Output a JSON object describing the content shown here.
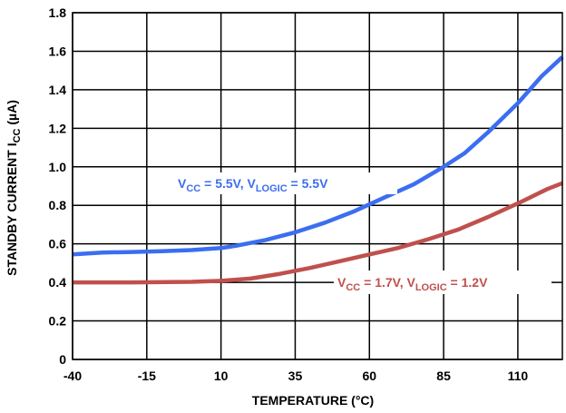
{
  "chart_data": {
    "type": "line",
    "xlabel": "TEMPERATURE (°C)",
    "ylabel": {
      "main": "STANDBY CURRENT I",
      "sub": "CC",
      "unit": " (µA)"
    },
    "xlim": [
      -40,
      125
    ],
    "ylim": [
      0,
      1.8
    ],
    "x_ticks": [
      "-40",
      "-15",
      "10",
      "35",
      "60",
      "85",
      "110"
    ],
    "x_tick_values": [
      -40,
      -15,
      10,
      35,
      60,
      85,
      110
    ],
    "y_ticks": [
      "0",
      "0.2",
      "0.4",
      "0.6",
      "0.8",
      "1.0",
      "1.2",
      "1.4",
      "1.6",
      "1.8"
    ],
    "y_tick_values": [
      0,
      0.2,
      0.4,
      0.6,
      0.8,
      1.0,
      1.2,
      1.4,
      1.6,
      1.8
    ],
    "grid": true,
    "series": [
      {
        "color": "#3b6ef0",
        "label_parts": [
          "V",
          "CC",
          " = 5.5V, V",
          "LOGIC",
          " = 5.5V"
        ],
        "x": [
          -40,
          -30,
          -20,
          -10,
          0,
          10,
          15,
          25,
          35,
          45,
          55,
          65,
          75,
          85,
          92,
          100,
          110,
          118,
          125
        ],
        "values": [
          0.545,
          0.555,
          0.558,
          0.562,
          0.568,
          0.578,
          0.59,
          0.62,
          0.66,
          0.71,
          0.77,
          0.84,
          0.91,
          1.0,
          1.07,
          1.18,
          1.33,
          1.47,
          1.57
        ]
      },
      {
        "color": "#c0504d",
        "label_parts": [
          "V",
          "CC",
          " = 1.7V, V",
          "LOGIC",
          " = 1.2V"
        ],
        "x": [
          -40,
          -20,
          0,
          10,
          20,
          30,
          40,
          50,
          60,
          70,
          80,
          90,
          100,
          110,
          120,
          125
        ],
        "values": [
          0.4,
          0.4,
          0.403,
          0.408,
          0.42,
          0.445,
          0.475,
          0.51,
          0.545,
          0.58,
          0.625,
          0.675,
          0.74,
          0.81,
          0.885,
          0.915
        ]
      }
    ]
  }
}
